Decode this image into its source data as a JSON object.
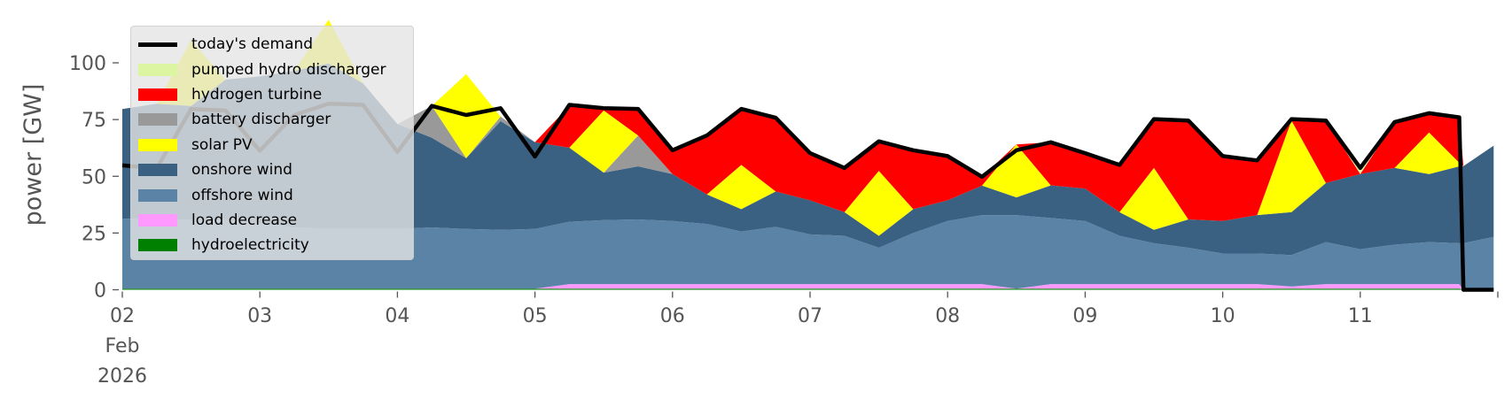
{
  "chart_data": {
    "type": "area",
    "title": "",
    "xlabel": "",
    "ylabel": "power [GW]",
    "ylim": [
      0,
      120
    ],
    "xlim_days": [
      0,
      10
    ],
    "grid": false,
    "legend_placement": "top-left",
    "yticks": [
      0,
      25,
      50,
      75,
      100
    ],
    "xtick_labels": [
      "02",
      "03",
      "04",
      "05",
      "06",
      "07",
      "08",
      "09",
      "10",
      "11"
    ],
    "xtick_first_extra": [
      "Feb",
      "2026"
    ],
    "x_unit": "days since 02 Feb 2026 00:00",
    "x": [
      0,
      0.25,
      0.5,
      0.75,
      1,
      1.25,
      1.5,
      1.75,
      2,
      2.25,
      2.5,
      2.75,
      3,
      3.25,
      3.5,
      3.75,
      4,
      4.25,
      4.5,
      4.75,
      5,
      5.25,
      5.5,
      5.75,
      6,
      6.25,
      6.5,
      6.75,
      7,
      7.25,
      7.5,
      7.75,
      8,
      8.25,
      8.5,
      8.75,
      9,
      9.25,
      9.5,
      9.72,
      9.75,
      9.97
    ],
    "stack_order": [
      "hydroelectricity",
      "load decrease",
      "offshore wind",
      "onshore wind",
      "battery discharger",
      "solar PV",
      "hydrogen turbine",
      "pumped hydro discharger"
    ],
    "series": [
      {
        "name": "hydroelectricity",
        "color": "#008000",
        "values": [
          0.5,
          0.5,
          0.5,
          0.5,
          0.5,
          0.5,
          0.5,
          0.5,
          0.5,
          0.5,
          0.5,
          0.5,
          0.5,
          0.5,
          0.5,
          0.5,
          0.5,
          0.5,
          0.5,
          0.5,
          0.5,
          0.5,
          0.5,
          0.5,
          0.5,
          0.5,
          0.5,
          0.5,
          0.5,
          0.5,
          0.5,
          0.5,
          0.5,
          0.5,
          0.5,
          0.5,
          0.5,
          0.5,
          0.5,
          0.5,
          0,
          0
        ]
      },
      {
        "name": "load decrease",
        "color": "#ff99ff",
        "values": [
          0,
          0,
          0,
          0,
          0,
          0,
          0,
          0,
          0,
          0,
          0,
          0,
          0,
          2,
          2,
          2,
          2,
          2,
          2,
          2,
          2,
          2,
          2,
          2,
          2,
          2,
          0,
          2,
          2,
          2,
          2,
          2,
          2,
          2,
          1,
          2,
          2,
          2,
          2,
          2,
          0,
          0
        ]
      },
      {
        "name": "offshore wind",
        "color": "#5b83a6",
        "values": [
          30.9,
          30.5,
          30.5,
          30.2,
          28.9,
          27,
          26.3,
          26.3,
          26.3,
          27,
          26.3,
          25.9,
          26.3,
          27.5,
          28.2,
          28.5,
          27.8,
          26.5,
          23.2,
          25.2,
          21.9,
          21.3,
          16,
          22.5,
          27.8,
          30.4,
          32.4,
          29.1,
          27.8,
          21.3,
          18,
          16,
          13.5,
          13.5,
          13.8,
          18.5,
          15.4,
          17.4,
          18.5,
          18,
          20.5,
          23.3
        ]
      },
      {
        "name": "onshore wind",
        "color": "#3b6182",
        "values": [
          48.2,
          51,
          50,
          61.9,
          64.6,
          69,
          72.9,
          64.2,
          46.2,
          39.5,
          31.2,
          47.9,
          38.2,
          32.6,
          20.9,
          23.4,
          20.7,
          13,
          9.8,
          15.6,
          15,
          10.4,
          5.3,
          10.5,
          9.1,
          13,
          7.8,
          14.4,
          14.3,
          10.4,
          5.9,
          12.5,
          14.3,
          16.9,
          18.9,
          26,
          33.1,
          33.8,
          30,
          33.9,
          34,
          40.2
        ]
      },
      {
        "name": "battery discharger",
        "color": "#999999",
        "values": [
          0,
          0,
          0,
          0,
          0,
          0,
          0,
          0,
          0,
          14,
          0,
          2,
          0,
          0,
          0,
          13.6,
          0,
          0,
          0,
          0,
          0,
          0,
          0,
          0,
          0,
          0,
          0,
          0,
          0,
          0,
          0,
          0,
          0,
          0,
          0,
          0,
          0,
          0,
          0,
          0,
          0,
          0
        ]
      },
      {
        "name": "solar PV",
        "color": "#ffff00",
        "values": [
          0,
          0,
          29,
          0,
          0,
          0,
          19.3,
          0,
          0,
          0,
          37,
          0,
          0,
          0,
          27.4,
          0,
          0,
          0,
          19.5,
          0,
          0,
          0,
          28.6,
          0,
          0,
          0,
          23.3,
          0,
          0,
          0,
          27.3,
          0,
          0,
          0,
          40.4,
          0,
          0,
          0,
          18.3,
          1.6,
          0,
          0
        ]
      },
      {
        "name": "hydrogen turbine",
        "color": "#ff0000",
        "values": [
          0,
          0,
          0,
          0,
          0,
          0,
          0,
          0,
          0,
          0,
          0,
          0,
          0,
          18.4,
          1,
          11.7,
          10.5,
          26,
          24.7,
          32.5,
          20.8,
          19.5,
          13,
          26,
          19.5,
          3.9,
          0,
          19,
          15.6,
          20.8,
          21.5,
          43.6,
          28.6,
          24.1,
          0.6,
          27.6,
          0,
          20.2,
          8.5,
          20,
          0,
          0
        ]
      },
      {
        "name": "pumped hydro discharger",
        "color": "#dbf5a3",
        "values": [
          0,
          0,
          0,
          0,
          0,
          0,
          0,
          0,
          0,
          0,
          0,
          0,
          0,
          0,
          0,
          0,
          0,
          0,
          0,
          0,
          0,
          0,
          0,
          0,
          0,
          0,
          0,
          0,
          0,
          0,
          0,
          0,
          0,
          0,
          0,
          0,
          2.7,
          0,
          0,
          0,
          0,
          0
        ]
      }
    ],
    "line": {
      "name": "today's demand",
      "color": "#000000",
      "values": [
        54.8,
        53.5,
        79.6,
        79,
        61.3,
        77,
        82,
        81.5,
        60.7,
        81,
        77,
        80,
        58.7,
        81.5,
        80,
        79.7,
        61.5,
        68,
        79.7,
        75.8,
        60.2,
        53.7,
        65.4,
        61.5,
        58.9,
        49.8,
        61.5,
        65,
        60.2,
        55,
        75.2,
        74.6,
        58.9,
        57,
        75.2,
        74.6,
        53.7,
        73.9,
        77.8,
        76,
        0,
        0
      ]
    }
  },
  "legend": {
    "items": [
      {
        "label": "today's demand",
        "color": "#000000"
      },
      {
        "label": "pumped hydro discharger",
        "color": "#dbf5a3"
      },
      {
        "label": "hydrogen turbine",
        "color": "#ff0000"
      },
      {
        "label": "battery discharger",
        "color": "#999999"
      },
      {
        "label": "solar PV",
        "color": "#ffff00"
      },
      {
        "label": "onshore wind",
        "color": "#3b6182"
      },
      {
        "label": "offshore wind",
        "color": "#5b83a6"
      },
      {
        "label": "load decrease",
        "color": "#ff99ff"
      },
      {
        "label": "hydroelectricity",
        "color": "#008000"
      }
    ]
  }
}
